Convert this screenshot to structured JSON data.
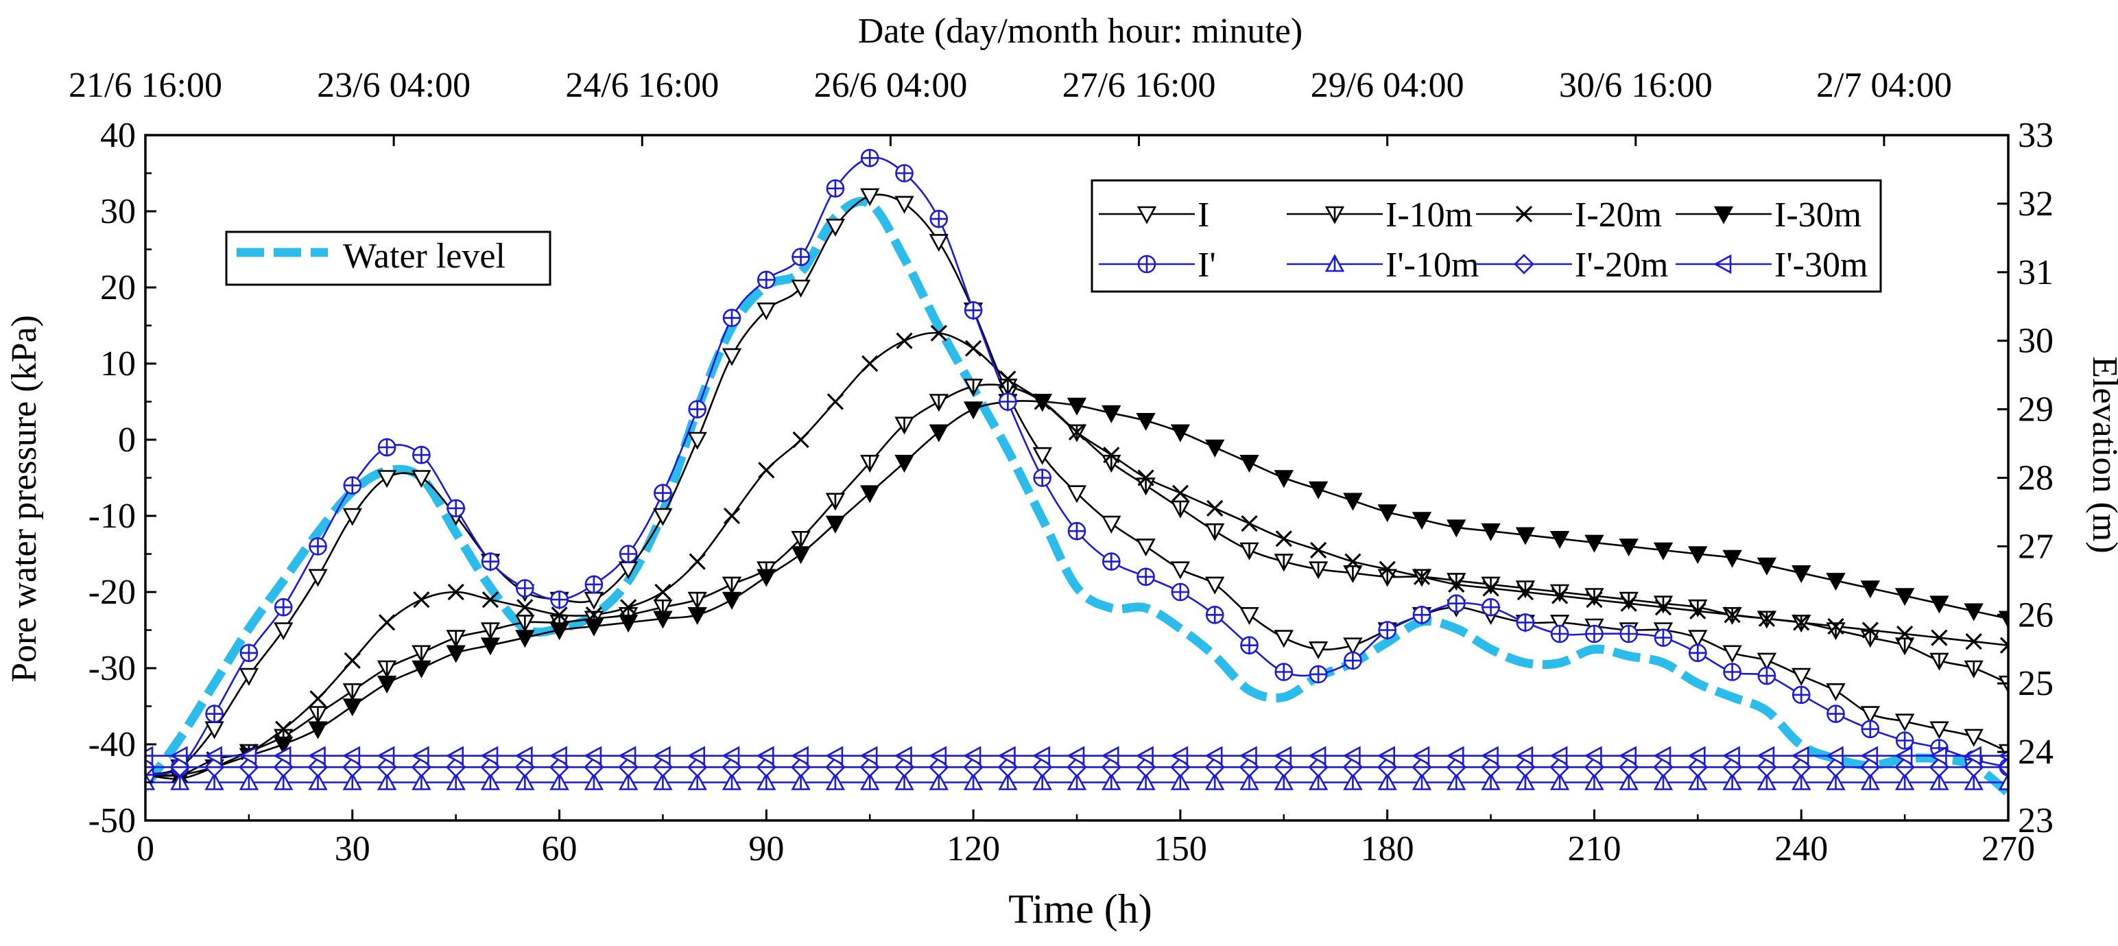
{
  "chart_data": {
    "type": "line",
    "title": "",
    "top_axis": {
      "label": "Date (day/month hour: minute)",
      "ticks": [
        {
          "hour": 0,
          "label": "21/6 16:00"
        },
        {
          "hour": 36,
          "label": "23/6 04:00"
        },
        {
          "hour": 72,
          "label": "24/6 16:00"
        },
        {
          "hour": 108,
          "label": "26/6 04:00"
        },
        {
          "hour": 144,
          "label": "27/6 16:00"
        },
        {
          "hour": 180,
          "label": "29/6 04:00"
        },
        {
          "hour": 216,
          "label": "30/6 16:00"
        },
        {
          "hour": 252,
          "label": "2/7 04:00"
        }
      ]
    },
    "xlabel": "Time (h)",
    "xlim": [
      0,
      270
    ],
    "xticks": [
      0,
      30,
      60,
      90,
      120,
      150,
      180,
      210,
      240,
      270
    ],
    "ylabel": "Pore water pressure (kPa)",
    "ylim": [
      -50,
      40
    ],
    "yticks": [
      -50,
      -40,
      -30,
      -20,
      -10,
      0,
      10,
      20,
      30,
      40
    ],
    "y2label": "Elevation (m)",
    "y2lim": [
      23,
      33
    ],
    "y2ticks": [
      23,
      24,
      25,
      26,
      27,
      28,
      29,
      30,
      31,
      32,
      33
    ],
    "x": [
      0,
      5,
      10,
      15,
      20,
      25,
      30,
      35,
      40,
      45,
      50,
      55,
      60,
      65,
      70,
      75,
      80,
      85,
      90,
      95,
      100,
      105,
      110,
      115,
      120,
      125,
      130,
      135,
      140,
      145,
      150,
      155,
      160,
      165,
      170,
      175,
      180,
      185,
      190,
      195,
      200,
      205,
      210,
      215,
      220,
      225,
      230,
      235,
      240,
      245,
      250,
      255,
      260,
      265,
      270
    ],
    "series": [
      {
        "name": "I",
        "color": "#000000",
        "marker": "triangle-down-open",
        "values": [
          -44,
          -43,
          -38,
          -31,
          -25,
          -18,
          -10,
          -5,
          -5,
          -10,
          -16,
          -20,
          -21,
          -21,
          -17,
          -10,
          0,
          11,
          17,
          20,
          28,
          32,
          31,
          26,
          17,
          6,
          -2,
          -7,
          -11,
          -14,
          -17,
          -19,
          -23,
          -26,
          -27.5,
          -27,
          -25,
          -23,
          -22,
          -23,
          -24,
          -24,
          -24.5,
          -25,
          -25,
          -26,
          -28,
          -29,
          -31,
          -33,
          -36,
          -37,
          -38,
          -39,
          -41
        ]
      },
      {
        "name": "I-10m",
        "color": "#000000",
        "marker": "triangle-down-tick",
        "values": [
          -44,
          -44.5,
          -43,
          -41,
          -39,
          -36,
          -33,
          -30,
          -28,
          -26,
          -25,
          -24,
          -24,
          -23.5,
          -23,
          -22,
          -21,
          -19,
          -17,
          -13,
          -8,
          -3,
          2,
          5,
          7,
          7,
          5,
          1,
          -3,
          -6,
          -9,
          -12,
          -14.5,
          -16,
          -17,
          -17.5,
          -18,
          -18,
          -18.5,
          -19,
          -19.5,
          -20,
          -20.5,
          -21,
          -21.5,
          -22,
          -23,
          -23.5,
          -24,
          -25,
          -26,
          -27,
          -29,
          -30,
          -32
        ]
      },
      {
        "name": "I-20m",
        "color": "#000000",
        "marker": "cross",
        "values": [
          -44,
          -44,
          -42,
          -41,
          -38,
          -34,
          -29,
          -24,
          -21,
          -20,
          -21,
          -22,
          -23,
          -23,
          -22,
          -20,
          -16,
          -10,
          -4,
          0,
          5,
          10,
          13,
          14,
          12,
          8,
          5,
          1,
          -2,
          -5,
          -7,
          -9,
          -11,
          -13,
          -14.5,
          -16,
          -17,
          -18,
          -19,
          -19.5,
          -20,
          -20.5,
          -21,
          -21.5,
          -22,
          -22.5,
          -23,
          -23.5,
          -24,
          -24.5,
          -25,
          -25.5,
          -26,
          -26.5,
          -27
        ]
      },
      {
        "name": "I-30m",
        "color": "#000000",
        "marker": "triangle-down-filled",
        "values": [
          -44,
          -44,
          -43,
          -41.5,
          -40,
          -38,
          -35,
          -32,
          -30,
          -28,
          -27,
          -26,
          -25,
          -24.5,
          -24,
          -23.5,
          -23,
          -21,
          -18,
          -15,
          -11,
          -7,
          -3,
          1,
          4,
          5,
          5,
          4.5,
          3.5,
          2.5,
          1,
          -1,
          -3,
          -5,
          -6.5,
          -8,
          -9.5,
          -10.5,
          -11.5,
          -12,
          -12.5,
          -13,
          -13.5,
          -14,
          -14.5,
          -15,
          -15.5,
          -16.5,
          -17.5,
          -18.5,
          -19.5,
          -20.5,
          -21.5,
          -22.5,
          -23.5
        ]
      },
      {
        "name": "I'",
        "color": "#1a1ad8",
        "marker": "circle-plus",
        "values": [
          -44,
          -43,
          -36,
          -28,
          -22,
          -14,
          -6,
          -1,
          -2,
          -9,
          -16,
          -19.5,
          -21,
          -19,
          -15,
          -7,
          4,
          16,
          21,
          24,
          33,
          37,
          35,
          29,
          17,
          5,
          -5,
          -12,
          -16,
          -18,
          -20,
          -23,
          -27,
          -30.5,
          -30.8,
          -29,
          -25,
          -23,
          -21.5,
          -22,
          -24,
          -25.5,
          -25.5,
          -25.5,
          -26,
          -28,
          -30.5,
          -31,
          -33.5,
          -36,
          -38,
          -39.5,
          -40.5,
          -42,
          -43
        ]
      },
      {
        "name": "I'-10m",
        "color": "#1a1ad8",
        "marker": "triangle-up-tick",
        "values": [
          -45,
          -45,
          -45,
          -45,
          -45,
          -45,
          -45,
          -45,
          -45,
          -45,
          -45,
          -45,
          -45,
          -45,
          -45,
          -45,
          -45,
          -45,
          -45,
          -45,
          -45,
          -45,
          -45,
          -45,
          -45,
          -45,
          -45,
          -45,
          -45,
          -45,
          -45,
          -45,
          -45,
          -45,
          -45,
          -45,
          -45,
          -45,
          -45,
          -45,
          -45,
          -45,
          -45,
          -45,
          -45,
          -45,
          -45,
          -45,
          -45,
          -45,
          -45,
          -45,
          -45,
          -45,
          -45
        ]
      },
      {
        "name": "I'-20m",
        "color": "#1a1ad8",
        "marker": "diamond-tick",
        "values": [
          -43,
          -43,
          -43,
          -43,
          -43,
          -43,
          -43,
          -43,
          -43,
          -43,
          -43,
          -43,
          -43,
          -43,
          -43,
          -43,
          -43,
          -43,
          -43,
          -43,
          -43,
          -43,
          -43,
          -43,
          -43,
          -43,
          -43,
          -43,
          -43,
          -43,
          -43,
          -43,
          -43,
          -43,
          -43,
          -43,
          -43,
          -43,
          -43,
          -43,
          -43,
          -43,
          -43,
          -43,
          -43,
          -43,
          -43,
          -43,
          -43,
          -43,
          -43,
          -43,
          -43,
          -43,
          -43
        ]
      },
      {
        "name": "I'-30m",
        "color": "#1a1ad8",
        "marker": "triangle-left-tick",
        "values": [
          -41.5,
          -41.5,
          -41.5,
          -41.5,
          -41.5,
          -41.5,
          -41.5,
          -41.5,
          -41.5,
          -41.5,
          -41.5,
          -41.5,
          -41.5,
          -41.5,
          -41.5,
          -41.5,
          -41.5,
          -41.5,
          -41.5,
          -41.5,
          -41.5,
          -41.5,
          -41.5,
          -41.5,
          -41.5,
          -41.5,
          -41.5,
          -41.5,
          -41.5,
          -41.5,
          -41.5,
          -41.5,
          -41.5,
          -41.5,
          -41.5,
          -41.5,
          -41.5,
          -41.5,
          -41.5,
          -41.5,
          -41.5,
          -41.5,
          -41.5,
          -41.5,
          -41.5,
          -41.5,
          -41.5,
          -41.5,
          -41.5,
          -41.5,
          -41.5,
          -41.5,
          -41.5,
          -41.5,
          -41.5
        ]
      }
    ],
    "water_level": {
      "name": "Water level",
      "color": "#2bbcec",
      "axis": "right",
      "x": [
        0,
        5,
        10,
        15,
        20,
        25,
        30,
        35,
        40,
        45,
        50,
        55,
        60,
        65,
        70,
        75,
        80,
        85,
        90,
        95,
        100,
        105,
        110,
        115,
        120,
        125,
        130,
        135,
        140,
        145,
        150,
        155,
        160,
        165,
        170,
        175,
        180,
        185,
        190,
        195,
        200,
        205,
        210,
        215,
        220,
        225,
        230,
        235,
        240,
        245,
        250,
        255,
        260,
        265,
        270
      ],
      "values": [
        23.5,
        24.2,
        25,
        25.8,
        26.5,
        27.2,
        27.8,
        28.1,
        28,
        27.2,
        26.4,
        25.8,
        25.8,
        26,
        26.5,
        27.5,
        29,
        30.2,
        30.8,
        31,
        31.8,
        32,
        31.2,
        30.2,
        29.3,
        28.4,
        27.4,
        26.4,
        26.1,
        26.1,
        25.8,
        25.4,
        24.9,
        24.8,
        25.1,
        25.3,
        25.6,
        25.9,
        25.8,
        25.5,
        25.3,
        25.3,
        25.5,
        25.4,
        25.3,
        25,
        24.8,
        24.6,
        24.1,
        23.9,
        23.8,
        23.9,
        23.9,
        23.8,
        23.4
      ]
    },
    "legend": {
      "position": "top-right",
      "water_level_position": "top-left",
      "entries": [
        "I",
        "I-10m",
        "I-20m",
        "I-30m",
        "I'",
        "I'-10m",
        "I'-20m",
        "I'-30m"
      ],
      "water_level_entry": "Water level"
    },
    "grid": false
  }
}
